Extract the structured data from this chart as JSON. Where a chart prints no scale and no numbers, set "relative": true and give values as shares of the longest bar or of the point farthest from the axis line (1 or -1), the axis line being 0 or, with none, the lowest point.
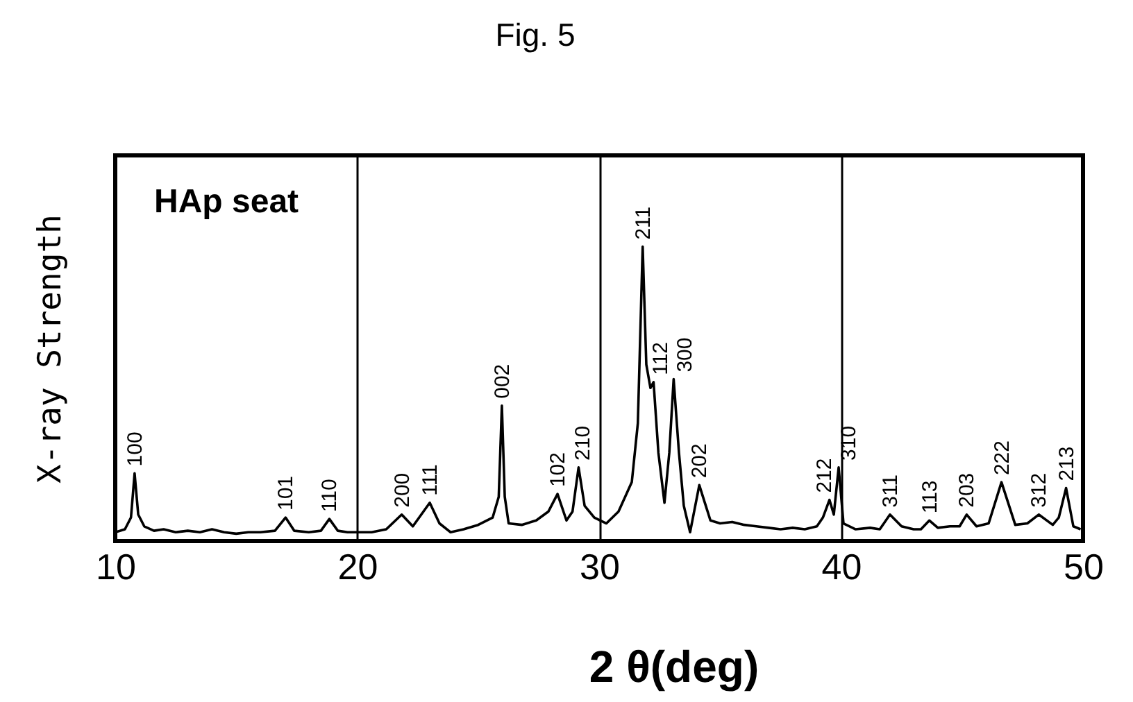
{
  "chart_data": {
    "type": "line",
    "title": "Fig. 5",
    "xlabel": "2 θ(deg)",
    "ylabel": "X-ray Strength",
    "relative": true,
    "xlim": [
      10,
      50
    ],
    "xticks": [
      10,
      20,
      30,
      40,
      50
    ],
    "grid": "x",
    "series": [
      {
        "color": "#000000",
        "x": [
          10.0,
          10.4,
          10.65,
          10.8,
          10.95,
          11.2,
          11.6,
          12.0,
          12.5,
          13.0,
          13.5,
          14.0,
          14.5,
          15.0,
          15.5,
          16.0,
          16.6,
          17.04,
          17.4,
          18.0,
          18.5,
          18.85,
          19.2,
          19.6,
          20.0,
          20.6,
          21.2,
          21.84,
          22.3,
          23.0,
          23.4,
          23.86,
          24.4,
          25.0,
          25.6,
          25.85,
          25.98,
          26.1,
          26.26,
          26.8,
          27.4,
          27.9,
          28.28,
          28.65,
          28.9,
          29.15,
          29.4,
          29.8,
          30.3,
          30.8,
          31.35,
          31.6,
          31.8,
          31.95,
          32.12,
          32.25,
          32.45,
          32.7,
          32.9,
          33.08,
          33.3,
          33.5,
          33.76,
          34.14,
          34.6,
          35.0,
          35.5,
          36.0,
          36.5,
          37.0,
          37.5,
          38.0,
          38.5,
          39.0,
          39.25,
          39.52,
          39.7,
          39.9,
          40.1,
          40.6,
          41.2,
          41.6,
          42.02,
          42.5,
          43.0,
          43.3,
          43.65,
          44.0,
          44.5,
          44.9,
          45.19,
          45.6,
          46.1,
          46.63,
          47.2,
          47.7,
          48.17,
          48.75,
          49.0,
          49.3,
          49.6,
          49.9
        ],
        "values": [
          0.03,
          0.04,
          0.08,
          0.23,
          0.09,
          0.05,
          0.035,
          0.04,
          0.03,
          0.035,
          0.03,
          0.04,
          0.03,
          0.025,
          0.03,
          0.03,
          0.035,
          0.08,
          0.035,
          0.03,
          0.035,
          0.075,
          0.035,
          0.03,
          0.03,
          0.03,
          0.04,
          0.09,
          0.05,
          0.13,
          0.06,
          0.03,
          0.04,
          0.055,
          0.08,
          0.15,
          0.46,
          0.15,
          0.06,
          0.055,
          0.07,
          0.1,
          0.16,
          0.07,
          0.1,
          0.25,
          0.12,
          0.08,
          0.06,
          0.1,
          0.2,
          0.4,
          1.0,
          0.6,
          0.52,
          0.54,
          0.3,
          0.13,
          0.3,
          0.55,
          0.3,
          0.12,
          0.03,
          0.19,
          0.07,
          0.06,
          0.065,
          0.055,
          0.05,
          0.045,
          0.04,
          0.045,
          0.04,
          0.05,
          0.08,
          0.14,
          0.09,
          0.25,
          0.06,
          0.04,
          0.045,
          0.04,
          0.09,
          0.05,
          0.04,
          0.04,
          0.07,
          0.045,
          0.05,
          0.05,
          0.09,
          0.05,
          0.06,
          0.2,
          0.055,
          0.06,
          0.09,
          0.055,
          0.08,
          0.18,
          0.05,
          0.04
        ]
      }
    ],
    "annotations": [
      "HAp seat",
      {
        "text": "100",
        "x": 10.8,
        "y": 0.23
      },
      {
        "text": "101",
        "x": 17.04,
        "y": 0.08
      },
      {
        "text": "110",
        "x": 18.85,
        "y": 0.075
      },
      {
        "text": "200",
        "x": 21.84,
        "y": 0.09
      },
      {
        "text": "111",
        "x": 23.0,
        "y": 0.13
      },
      {
        "text": "002",
        "x": 25.98,
        "y": 0.46
      },
      {
        "text": "102",
        "x": 28.28,
        "y": 0.16
      },
      {
        "text": "210",
        "x": 29.15,
        "y": 0.25
      },
      {
        "text": "211",
        "x": 31.8,
        "y": 1.0
      },
      {
        "text": "112",
        "x": 32.25,
        "y": 0.54
      },
      {
        "text": "300",
        "x": 33.08,
        "y": 0.55
      },
      {
        "text": "202",
        "x": 34.14,
        "y": 0.19
      },
      {
        "text": "212",
        "x": 39.52,
        "y": 0.14
      },
      {
        "text": "310",
        "x": 39.9,
        "y": 0.25
      },
      {
        "text": "311",
        "x": 42.02,
        "y": 0.09
      },
      {
        "text": "113",
        "x": 43.65,
        "y": 0.07
      },
      {
        "text": "203",
        "x": 45.19,
        "y": 0.09
      },
      {
        "text": "222",
        "x": 46.63,
        "y": 0.2
      },
      {
        "text": "312",
        "x": 48.17,
        "y": 0.09
      },
      {
        "text": "213",
        "x": 49.3,
        "y": 0.18
      }
    ]
  }
}
